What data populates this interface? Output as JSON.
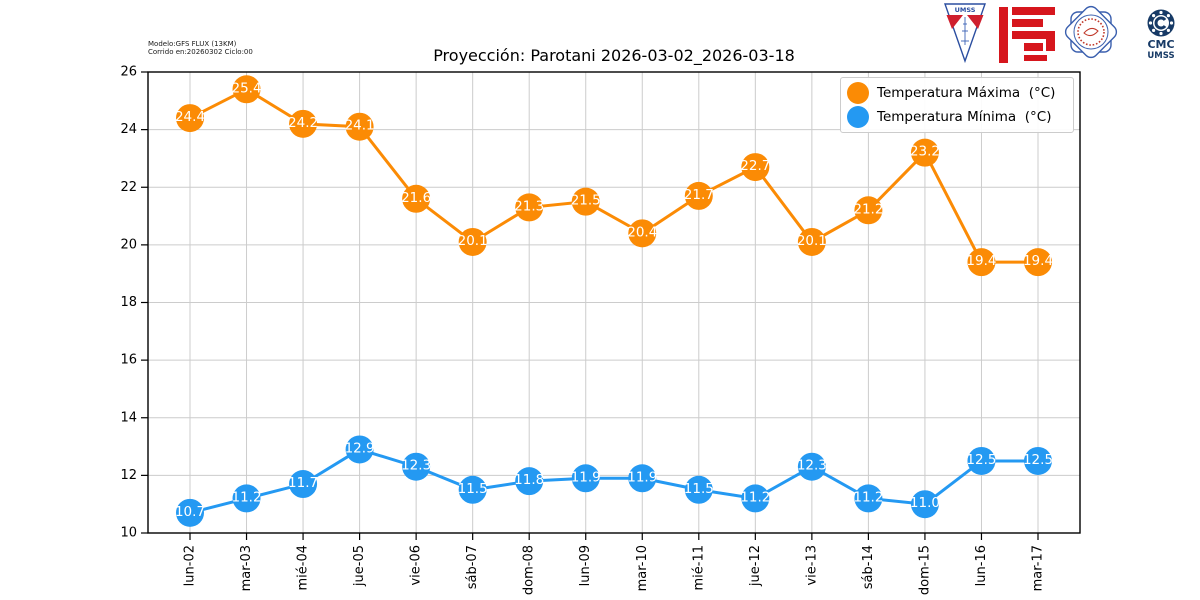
{
  "header": {
    "model_line1": "Modelo:GFS FLUX (13KM)",
    "model_line2": "Corrido en:20260302 Ciclo:00"
  },
  "logos": {
    "pennant_text": "UMSS",
    "cmc_line1": "CMC",
    "cmc_line2": "UMSS"
  },
  "chart_data": {
    "type": "line",
    "title": "Proyección: Parotani 2026-03-02_2026-03-18",
    "xlabel": "",
    "ylabel": "",
    "categories": [
      "lun-02",
      "mar-03",
      "mié-04",
      "jue-05",
      "vie-06",
      "sáb-07",
      "dom-08",
      "lun-09",
      "mar-10",
      "mié-11",
      "jue-12",
      "vie-13",
      "sáb-14",
      "dom-15",
      "lun-16",
      "mar-17"
    ],
    "series": [
      {
        "name": "Temperatura Máxima  (°C)",
        "color": "#fb8b05",
        "values": [
          24.4,
          25.4,
          24.2,
          24.1,
          21.6,
          20.1,
          21.3,
          21.5,
          20.4,
          21.7,
          22.7,
          20.1,
          21.2,
          23.2,
          19.4,
          19.4
        ]
      },
      {
        "name": "Temperatura Mínima  (°C)",
        "color": "#2499f2",
        "values": [
          10.7,
          11.2,
          11.7,
          12.9,
          12.3,
          11.5,
          11.8,
          11.9,
          11.9,
          11.5,
          11.2,
          12.3,
          11.2,
          11.0,
          12.5,
          12.5
        ]
      }
    ],
    "ylim": [
      10,
      26
    ],
    "yticks": [
      10,
      12,
      14,
      16,
      18,
      20,
      22,
      24,
      26
    ],
    "grid": true,
    "legend_position": "upper right",
    "marker": "circle",
    "point_labels": true
  }
}
